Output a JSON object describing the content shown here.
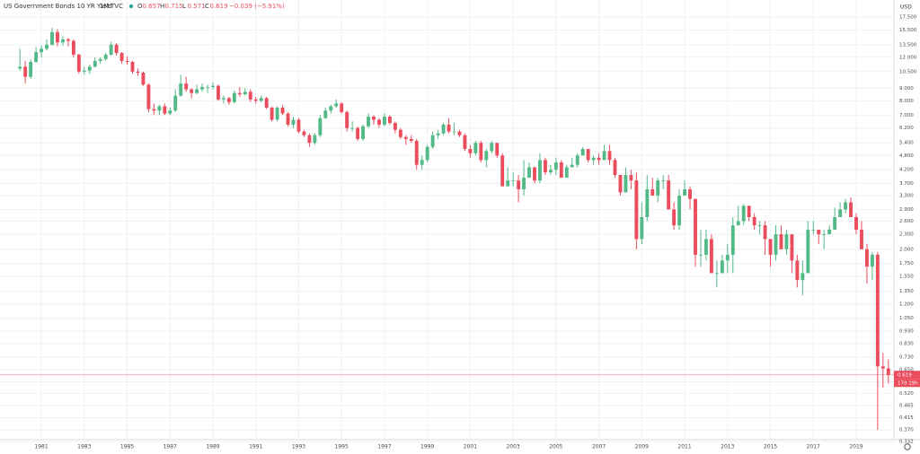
{
  "chart_data": {
    "type": "candlestick",
    "title": "US Government Bonds 10 YR Yield",
    "interval": "1M",
    "source": "TVC",
    "ohlc_legend": [
      {
        "label": "O",
        "value": 0.657
      },
      {
        "label": "H",
        "value": 0.715
      },
      {
        "label": "L",
        "value": 0.571
      },
      {
        "label": "C",
        "value": 0.619
      }
    ],
    "change": "−0.039 (−5.91%)",
    "currency": "USD",
    "last_price": 0.619,
    "countdown": "17d 19h",
    "up_color": "#53b987",
    "down_color": "#eb4d5c",
    "log_scale": true,
    "grid": true,
    "xlim": [
      1979.07,
      2020.76
    ],
    "ylim": [
      0.338,
      20.5
    ],
    "xticks": [
      1981,
      1983,
      1985,
      1987,
      1989,
      1991,
      1993,
      1995,
      1997,
      1999,
      2001,
      2003,
      2005,
      2007,
      2009,
      2011,
      2013,
      2015,
      2017,
      2019
    ],
    "yticks": [
      {
        "value": 0.332,
        "label": "0.332"
      },
      {
        "value": 0.37,
        "label": "0.370"
      },
      {
        "value": 0.415,
        "label": "0.415"
      },
      {
        "value": 0.465,
        "label": "0.465"
      },
      {
        "value": 0.52,
        "label": "0.520"
      },
      {
        "value": 0.58,
        "label": "0.580"
      },
      {
        "value": 0.65,
        "label": "0.650"
      },
      {
        "value": 0.73,
        "label": "0.730"
      },
      {
        "value": 0.83,
        "label": "0.830"
      },
      {
        "value": 0.93,
        "label": "0.930"
      },
      {
        "value": 1.05,
        "label": "1.050"
      },
      {
        "value": 1.2,
        "label": "1.200"
      },
      {
        "value": 1.35,
        "label": "1.350"
      },
      {
        "value": 1.55,
        "label": "1.550"
      },
      {
        "value": 1.75,
        "label": "1.750"
      },
      {
        "value": 2,
        "label": "2.000"
      },
      {
        "value": 2.3,
        "label": "2.300"
      },
      {
        "value": 2.6,
        "label": "2.600"
      },
      {
        "value": 2.9,
        "label": "2.900"
      },
      {
        "value": 3.3,
        "label": "3.300"
      },
      {
        "value": 3.7,
        "label": "3.700"
      },
      {
        "value": 4.2,
        "label": "4.200"
      },
      {
        "value": 4.8,
        "label": "4.800"
      },
      {
        "value": 5.4,
        "label": "5.400"
      },
      {
        "value": 6.2,
        "label": "6.200"
      },
      {
        "value": 7,
        "label": "7.000"
      },
      {
        "value": 8,
        "label": "8.000"
      },
      {
        "value": 9,
        "label": "9.000"
      },
      {
        "value": 10.5,
        "label": "10.500"
      },
      {
        "value": 12,
        "label": "12.000"
      },
      {
        "value": 13.5,
        "label": "13.500"
      },
      {
        "value": 15.5,
        "label": "15.500"
      },
      {
        "value": 17.5,
        "label": "17.500"
      }
    ],
    "x": [
      1980,
      1980.25,
      1980.5,
      1980.75,
      1981,
      1981.25,
      1981.5,
      1981.75,
      1982,
      1982.25,
      1982.5,
      1982.75,
      1983,
      1983.25,
      1983.5,
      1983.75,
      1984,
      1984.25,
      1984.5,
      1984.75,
      1985,
      1985.25,
      1985.5,
      1985.75,
      1986,
      1986.25,
      1986.5,
      1986.75,
      1987,
      1987.25,
      1987.5,
      1987.75,
      1988,
      1988.25,
      1988.5,
      1988.75,
      1989,
      1989.25,
      1989.5,
      1989.75,
      1990,
      1990.25,
      1990.5,
      1990.75,
      1991,
      1991.25,
      1991.5,
      1991.75,
      1992,
      1992.25,
      1992.5,
      1992.75,
      1993,
      1993.25,
      1993.5,
      1993.75,
      1994,
      1994.25,
      1994.5,
      1994.75,
      1995,
      1995.25,
      1995.5,
      1995.75,
      1996,
      1996.25,
      1996.5,
      1996.75,
      1997,
      1997.25,
      1997.5,
      1997.75,
      1998,
      1998.25,
      1998.5,
      1998.75,
      1999,
      1999.25,
      1999.5,
      1999.75,
      2000,
      2000.25,
      2000.5,
      2000.75,
      2001,
      2001.25,
      2001.5,
      2001.75,
      2002,
      2002.25,
      2002.5,
      2002.75,
      2003,
      2003.25,
      2003.5,
      2003.75,
      2004,
      2004.25,
      2004.5,
      2004.75,
      2005,
      2005.25,
      2005.5,
      2005.75,
      2006,
      2006.25,
      2006.5,
      2006.75,
      2007,
      2007.25,
      2007.5,
      2007.75,
      2008,
      2008.25,
      2008.5,
      2008.75,
      2009,
      2009.25,
      2009.5,
      2009.75,
      2010,
      2010.25,
      2010.5,
      2010.75,
      2011,
      2011.25,
      2011.5,
      2011.75,
      2012,
      2012.25,
      2012.5,
      2012.75,
      2013,
      2013.25,
      2013.5,
      2013.75,
      2014,
      2014.25,
      2014.5,
      2014.75,
      2015,
      2015.25,
      2015.5,
      2015.75,
      2016,
      2016.25,
      2016.5,
      2016.75,
      2017,
      2017.25,
      2017.5,
      2017.75,
      2018,
      2018.25,
      2018.5,
      2018.75,
      2019,
      2019.25,
      2019.5,
      2019.75,
      2020,
      2020.25,
      2020.5
    ],
    "open": [
      10.8,
      11.0,
      10.0,
      11.5,
      12.6,
      13.0,
      13.5,
      15.2,
      13.8,
      14.2,
      14.0,
      12.3,
      10.5,
      10.6,
      11.0,
      11.6,
      11.8,
      12.3,
      13.5,
      12.5,
      11.6,
      11.5,
      10.5,
      10.4,
      9.3,
      7.4,
      7.3,
      7.6,
      7.1,
      7.3,
      8.4,
      9.4,
      8.9,
      8.6,
      8.9,
      9.1,
      9.1,
      9.2,
      8.1,
      8.2,
      7.9,
      8.6,
      8.5,
      8.7,
      8.1,
      8.0,
      8.2,
      7.5,
      6.7,
      7.5,
      7.1,
      6.4,
      6.7,
      6.0,
      5.8,
      5.4,
      5.8,
      6.8,
      7.3,
      7.6,
      7.8,
      7.2,
      6.2,
      6.2,
      5.6,
      6.3,
      6.9,
      6.7,
      6.4,
      6.9,
      6.5,
      6.1,
      5.7,
      5.6,
      5.5,
      4.4,
      4.6,
      5.2,
      5.8,
      5.9,
      6.4,
      6.0,
      6.0,
      5.8,
      5.1,
      4.9,
      5.4,
      4.6,
      5.0,
      5.4,
      4.8,
      3.6,
      3.8,
      3.8,
      3.5,
      3.9,
      4.3,
      3.8,
      4.6,
      4.1,
      4.2,
      4.5,
      3.9,
      4.3,
      4.4,
      4.8,
      5.1,
      4.6,
      4.7,
      4.6,
      5.0,
      4.6,
      4.0,
      3.4,
      4.0,
      3.8,
      2.2,
      2.7,
      3.5,
      3.3,
      3.8,
      3.8,
      2.9,
      2.5,
      3.3,
      3.5,
      3.2,
      1.9,
      1.9,
      2.2,
      1.6,
      1.6,
      1.8,
      1.9,
      2.5,
      2.6,
      3.0,
      2.7,
      2.5,
      2.5,
      2.2,
      1.9,
      2.3,
      2.0,
      2.3,
      1.8,
      1.5,
      1.6,
      2.4,
      2.4,
      2.3,
      2.3,
      2.4,
      2.7,
      2.9,
      3.1,
      2.7,
      2.4,
      2.0,
      1.7,
      1.9,
      0.67,
      0.657
    ],
    "high": [
      13.0,
      11.6,
      11.8,
      13.2,
      13.4,
      14.2,
      15.8,
      15.6,
      14.6,
      14.4,
      14.2,
      12.4,
      11.0,
      11.2,
      12.0,
      12.0,
      12.5,
      13.9,
      13.7,
      12.6,
      12.1,
      11.6,
      10.8,
      10.5,
      9.4,
      7.8,
      7.7,
      7.8,
      7.5,
      8.9,
      10.2,
      10.0,
      9.0,
      9.3,
      9.4,
      9.3,
      9.5,
      9.3,
      8.4,
      8.3,
      8.8,
      9.1,
      9.0,
      8.9,
      8.3,
      8.4,
      8.3,
      7.6,
      7.6,
      7.7,
      7.2,
      6.9,
      6.8,
      6.1,
      5.9,
      5.9,
      7.0,
      7.5,
      7.7,
      8.1,
      7.9,
      7.3,
      6.6,
      6.3,
      6.4,
      7.1,
      7.0,
      6.8,
      7.1,
      7.0,
      6.6,
      6.2,
      5.8,
      5.8,
      5.6,
      4.8,
      5.3,
      6.0,
      6.1,
      6.5,
      6.8,
      6.5,
      6.1,
      5.9,
      5.3,
      5.5,
      5.5,
      5.1,
      5.5,
      5.4,
      4.9,
      4.3,
      4.1,
      4.0,
      4.6,
      4.5,
      4.3,
      4.9,
      4.7,
      4.4,
      4.7,
      4.6,
      4.4,
      4.7,
      4.9,
      5.2,
      5.1,
      4.8,
      4.9,
      5.3,
      5.3,
      4.7,
      4.0,
      4.3,
      4.2,
      4.1,
      3.1,
      4.0,
      3.9,
      3.9,
      4.0,
      4.0,
      3.1,
      3.5,
      3.8,
      3.6,
      3.2,
      2.4,
      2.4,
      2.3,
      1.8,
      1.9,
      2.1,
      2.7,
      3.0,
      3.05,
      3.0,
      2.8,
      2.6,
      2.6,
      2.2,
      2.5,
      2.5,
      2.4,
      2.3,
      1.9,
      1.8,
      2.6,
      2.6,
      2.4,
      2.4,
      2.5,
      2.95,
      3.1,
      3.2,
      3.25,
      2.8,
      2.6,
      2.1,
      1.95,
      1.95,
      0.76,
      0.715
    ],
    "low": [
      10.6,
      9.4,
      9.8,
      11.4,
      12.0,
      12.8,
      13.4,
      13.3,
      13.4,
      13.3,
      12.0,
      10.3,
      10.2,
      10.3,
      10.9,
      11.3,
      11.6,
      12.2,
      12.2,
      11.3,
      11.2,
      10.3,
      10.1,
      9.2,
      7.2,
      7.0,
      7.0,
      7.0,
      7.0,
      7.2,
      8.3,
      8.7,
      8.2,
      8.5,
      8.7,
      8.6,
      8.9,
      8.0,
      7.8,
      7.7,
      7.8,
      8.3,
      8.4,
      7.9,
      7.8,
      7.9,
      7.4,
      6.6,
      6.6,
      7.0,
      6.3,
      6.2,
      5.9,
      5.7,
      5.2,
      5.3,
      5.7,
      6.8,
      7.1,
      7.5,
      7.1,
      6.0,
      6.0,
      5.5,
      5.5,
      6.2,
      6.4,
      6.2,
      6.3,
      6.4,
      5.9,
      5.6,
      5.3,
      5.4,
      4.2,
      4.2,
      4.5,
      5.1,
      5.6,
      5.8,
      5.9,
      5.8,
      5.7,
      5.0,
      4.7,
      4.8,
      4.5,
      4.3,
      4.9,
      4.7,
      3.6,
      3.6,
      3.6,
      3.1,
      3.3,
      3.9,
      3.7,
      3.7,
      4.0,
      4.0,
      4.0,
      3.9,
      3.9,
      4.3,
      4.3,
      4.8,
      4.5,
      4.4,
      4.4,
      4.6,
      4.4,
      3.9,
      3.3,
      3.4,
      3.5,
      2.0,
      2.1,
      2.6,
      3.3,
      3.1,
      3.5,
      2.9,
      2.4,
      2.4,
      3.3,
      2.9,
      1.7,
      1.7,
      1.8,
      1.6,
      1.4,
      1.6,
      1.6,
      1.6,
      2.5,
      2.5,
      2.6,
      2.4,
      2.3,
      1.9,
      1.7,
      1.8,
      2.0,
      1.9,
      1.6,
      1.4,
      1.3,
      1.6,
      2.3,
      2.1,
      2.0,
      2.3,
      2.4,
      2.7,
      2.8,
      2.7,
      2.3,
      2.0,
      1.45,
      1.5,
      0.37,
      0.55,
      0.571
    ],
    "close": [
      11.0,
      10.0,
      11.5,
      12.6,
      13.0,
      13.5,
      15.2,
      13.8,
      14.2,
      14.0,
      12.3,
      10.5,
      10.6,
      11.0,
      11.6,
      11.8,
      12.3,
      13.5,
      12.5,
      11.6,
      11.5,
      10.5,
      10.4,
      9.3,
      7.4,
      7.3,
      7.6,
      7.1,
      7.3,
      8.4,
      9.4,
      8.9,
      8.6,
      8.9,
      9.1,
      9.1,
      9.2,
      8.1,
      8.2,
      7.9,
      8.6,
      8.5,
      8.7,
      8.1,
      8.0,
      8.2,
      7.5,
      6.7,
      7.5,
      7.1,
      6.4,
      6.7,
      6.0,
      5.8,
      5.4,
      5.8,
      6.8,
      7.3,
      7.6,
      7.8,
      7.2,
      6.2,
      6.2,
      5.6,
      6.3,
      6.9,
      6.7,
      6.4,
      6.9,
      6.5,
      6.1,
      5.7,
      5.6,
      5.5,
      4.4,
      4.6,
      5.2,
      5.8,
      5.9,
      6.4,
      6.0,
      6.0,
      5.8,
      5.1,
      4.9,
      5.4,
      4.6,
      5.0,
      5.4,
      4.8,
      3.6,
      3.8,
      3.8,
      3.5,
      3.9,
      4.3,
      3.8,
      4.6,
      4.1,
      4.2,
      4.5,
      3.9,
      4.3,
      4.4,
      4.8,
      5.1,
      4.6,
      4.7,
      4.6,
      5.0,
      4.6,
      4.0,
      3.4,
      4.0,
      3.8,
      2.2,
      2.7,
      3.5,
      3.3,
      3.8,
      3.8,
      2.9,
      2.5,
      3.3,
      3.5,
      3.2,
      1.9,
      1.9,
      2.2,
      1.6,
      1.6,
      1.8,
      1.9,
      2.5,
      2.6,
      3.0,
      2.7,
      2.5,
      2.5,
      2.2,
      1.9,
      2.3,
      2.0,
      2.3,
      1.8,
      1.5,
      1.6,
      2.4,
      2.4,
      2.3,
      2.3,
      2.4,
      2.7,
      2.9,
      3.1,
      2.7,
      2.4,
      2.0,
      1.7,
      1.9,
      0.67,
      0.657,
      0.619
    ]
  }
}
